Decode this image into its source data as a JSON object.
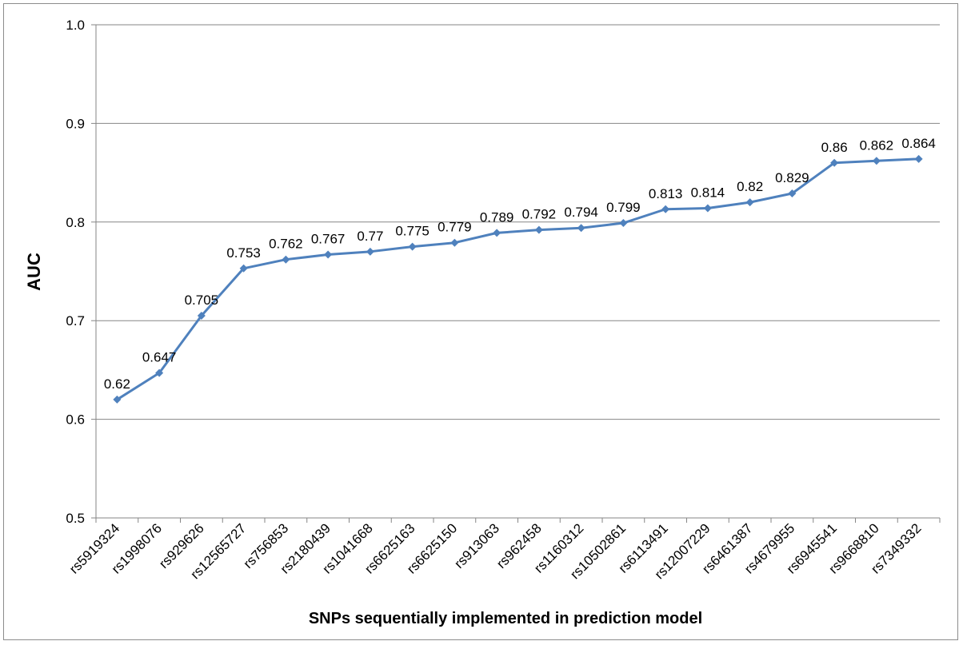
{
  "chart_data": {
    "type": "line",
    "title": "",
    "xlabel": "SNPs sequentially implemented in prediction model",
    "ylabel": "AUC",
    "ylim": [
      0.5,
      1.0
    ],
    "yticks": [
      "0.5",
      "0.6",
      "0.7",
      "0.8",
      "0.9",
      "1.0"
    ],
    "grid": true,
    "legend": "none",
    "categories": [
      "rs5919324",
      "rs1998076",
      "rs929626",
      "rs12565727",
      "rs756853",
      "rs2180439",
      "rs1041668",
      "rs6625163",
      "rs6625150",
      "rs913063",
      "rs962458",
      "rs1160312",
      "rs10502861",
      "rs6113491",
      "rs12007229",
      "rs6461387",
      "rs4679955",
      "rs6945541",
      "rs9668810",
      "rs7349332"
    ],
    "values": [
      0.62,
      0.647,
      0.705,
      0.753,
      0.762,
      0.767,
      0.77,
      0.775,
      0.779,
      0.789,
      0.792,
      0.794,
      0.799,
      0.813,
      0.814,
      0.82,
      0.829,
      0.86,
      0.862,
      0.864
    ],
    "data_labels": [
      "0.62",
      "0.647",
      "0.705",
      "0.753",
      "0.762",
      "0.767",
      "0.77",
      "0.775",
      "0.779",
      "0.789",
      "0.792",
      "0.794",
      "0.799",
      "0.813",
      "0.814",
      "0.82",
      "0.829",
      "0.86",
      "0.862",
      "0.864"
    ],
    "line_color": "#4f81bd",
    "grid_color": "#868686"
  }
}
